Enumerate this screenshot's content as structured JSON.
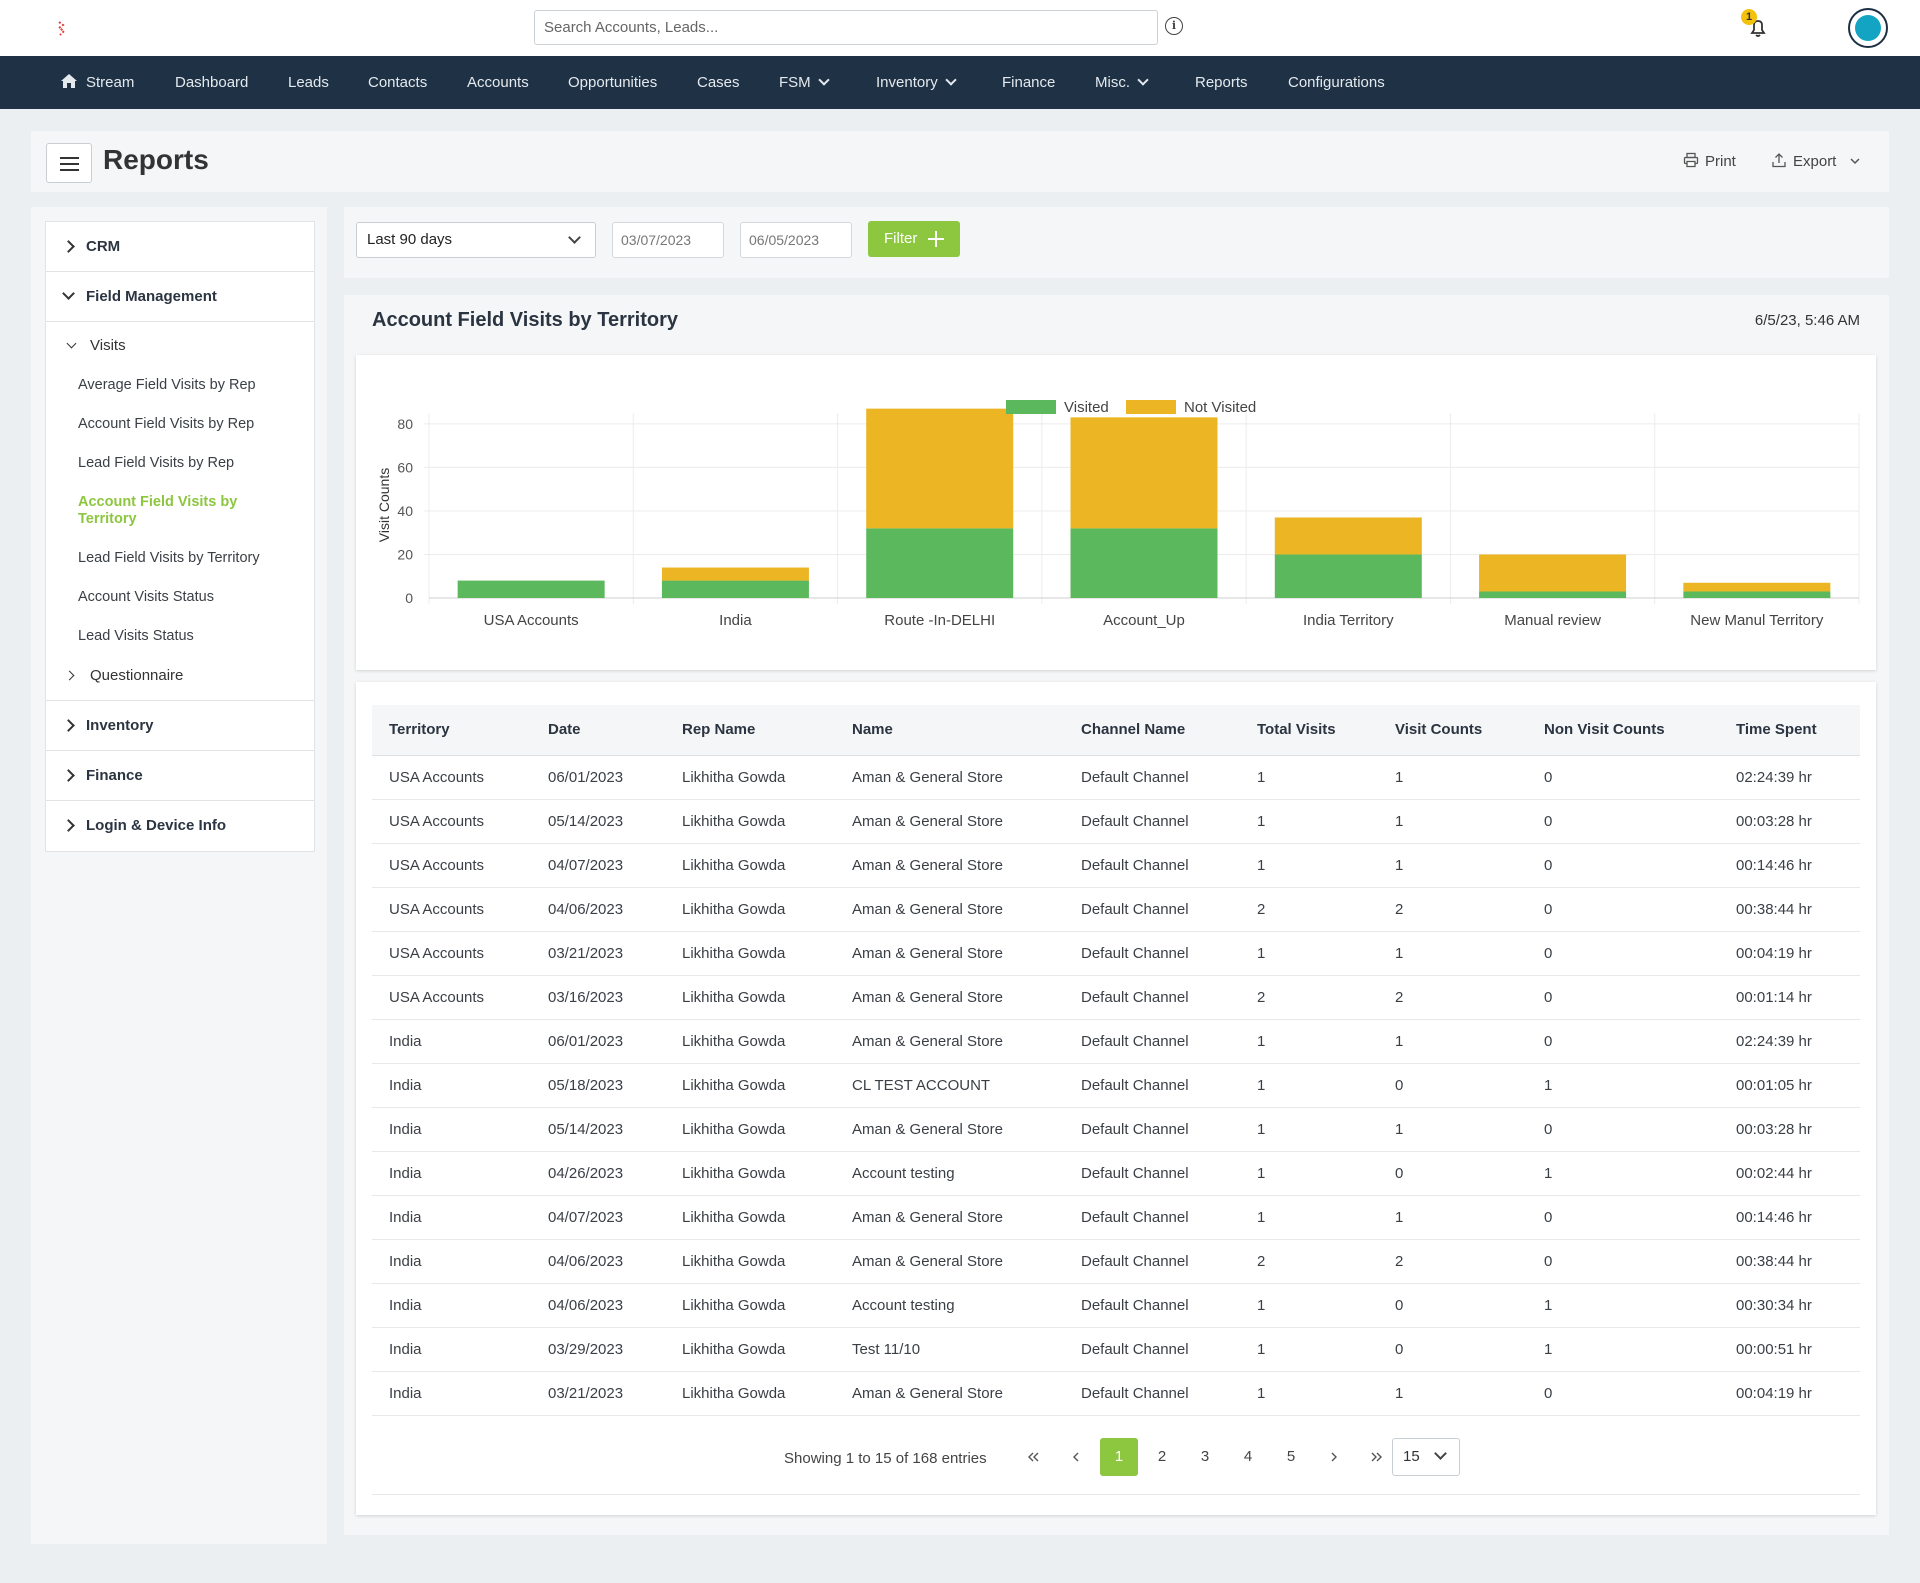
{
  "header": {
    "search_placeholder": "Search Accounts, Leads...",
    "notification_count": "1"
  },
  "nav": [
    {
      "label": "Stream",
      "icon": "home-icon"
    },
    {
      "label": "Dashboard"
    },
    {
      "label": "Leads"
    },
    {
      "label": "Contacts"
    },
    {
      "label": "Accounts"
    },
    {
      "label": "Opportunities"
    },
    {
      "label": "Cases"
    },
    {
      "label": "FSM",
      "dropdown": true
    },
    {
      "label": "Inventory",
      "dropdown": true
    },
    {
      "label": "Finance"
    },
    {
      "label": "Misc.",
      "dropdown": true
    },
    {
      "label": "Reports"
    },
    {
      "label": "Configurations"
    }
  ],
  "page": {
    "title": "Reports",
    "print_label": "Print",
    "export_label": "Export"
  },
  "sidebar": {
    "crm": "CRM",
    "field_management": "Field Management",
    "visits": "Visits",
    "visit_links": [
      "Average Field Visits by Rep",
      "Account Field Visits by Rep",
      "Lead Field Visits by Rep",
      "Account Field Visits by Territory",
      "Lead Field Visits by Territory",
      "Account Visits Status",
      "Lead Visits Status"
    ],
    "active_link": "Account Field Visits by Territory",
    "questionnaire": "Questionnaire",
    "inventory": "Inventory",
    "finance": "Finance",
    "login_device": "Login & Device Info"
  },
  "filters": {
    "range": "Last 90 days",
    "start_date": "03/07/2023",
    "end_date": "06/05/2023",
    "filter_label": "Filter"
  },
  "report": {
    "title": "Account Field Visits by Territory",
    "timestamp": "6/5/23, 5:46 AM"
  },
  "chart_data": {
    "type": "bar",
    "stacked": true,
    "categories": [
      "USA Accounts",
      "India",
      "Route -In-DELHI",
      "Account_Up",
      "India Territory",
      "Manual review",
      "New Manul Territory"
    ],
    "series": [
      {
        "name": "Visited",
        "color": "#5cb85c",
        "values": [
          8,
          8,
          32,
          32,
          20,
          3,
          3
        ]
      },
      {
        "name": "Not Visited",
        "color": "#ebb524",
        "values": [
          0,
          6,
          55,
          51,
          17,
          17,
          4
        ]
      }
    ],
    "ylabel": "Visit Counts",
    "ylim": [
      0,
      85
    ],
    "yticks": [
      0,
      20,
      40,
      60,
      80
    ],
    "legend": "top-center",
    "grid": true
  },
  "table": {
    "columns": [
      "Territory",
      "Date",
      "Rep Name",
      "Name",
      "Channel Name",
      "Total Visits",
      "Visit Counts",
      "Non Visit Counts",
      "Time Spent"
    ],
    "rows": [
      [
        "USA Accounts",
        "06/01/2023",
        "Likhitha Gowda",
        "Aman & General Store",
        "Default Channel",
        "1",
        "1",
        "0",
        "02:24:39 hr"
      ],
      [
        "USA Accounts",
        "05/14/2023",
        "Likhitha Gowda",
        "Aman & General Store",
        "Default Channel",
        "1",
        "1",
        "0",
        "00:03:28 hr"
      ],
      [
        "USA Accounts",
        "04/07/2023",
        "Likhitha Gowda",
        "Aman & General Store",
        "Default Channel",
        "1",
        "1",
        "0",
        "00:14:46 hr"
      ],
      [
        "USA Accounts",
        "04/06/2023",
        "Likhitha Gowda",
        "Aman & General Store",
        "Default Channel",
        "2",
        "2",
        "0",
        "00:38:44 hr"
      ],
      [
        "USA Accounts",
        "03/21/2023",
        "Likhitha Gowda",
        "Aman & General Store",
        "Default Channel",
        "1",
        "1",
        "0",
        "00:04:19 hr"
      ],
      [
        "USA Accounts",
        "03/16/2023",
        "Likhitha Gowda",
        "Aman & General Store",
        "Default Channel",
        "2",
        "2",
        "0",
        "00:01:14 hr"
      ],
      [
        "India",
        "06/01/2023",
        "Likhitha Gowda",
        "Aman & General Store",
        "Default Channel",
        "1",
        "1",
        "0",
        "02:24:39 hr"
      ],
      [
        "India",
        "05/18/2023",
        "Likhitha Gowda",
        "CL TEST ACCOUNT",
        "Default Channel",
        "1",
        "0",
        "1",
        "00:01:05 hr"
      ],
      [
        "India",
        "05/14/2023",
        "Likhitha Gowda",
        "Aman & General Store",
        "Default Channel",
        "1",
        "1",
        "0",
        "00:03:28 hr"
      ],
      [
        "India",
        "04/26/2023",
        "Likhitha Gowda",
        "Account testing",
        "Default Channel",
        "1",
        "0",
        "1",
        "00:02:44 hr"
      ],
      [
        "India",
        "04/07/2023",
        "Likhitha Gowda",
        "Aman & General Store",
        "Default Channel",
        "1",
        "1",
        "0",
        "00:14:46 hr"
      ],
      [
        "India",
        "04/06/2023",
        "Likhitha Gowda",
        "Aman & General Store",
        "Default Channel",
        "2",
        "2",
        "0",
        "00:38:44 hr"
      ],
      [
        "India",
        "04/06/2023",
        "Likhitha Gowda",
        "Account testing",
        "Default Channel",
        "1",
        "0",
        "1",
        "00:30:34 hr"
      ],
      [
        "India",
        "03/29/2023",
        "Likhitha Gowda",
        "Test 11/10",
        "Default Channel",
        "1",
        "0",
        "1",
        "00:00:51 hr"
      ],
      [
        "India",
        "03/21/2023",
        "Likhitha Gowda",
        "Aman & General Store",
        "Default Channel",
        "1",
        "1",
        "0",
        "00:04:19 hr"
      ]
    ]
  },
  "pagination": {
    "info": "Showing 1 to 15 of 168 entries",
    "pages": [
      "1",
      "2",
      "3",
      "4",
      "5"
    ],
    "current": "1",
    "page_size": "15"
  }
}
